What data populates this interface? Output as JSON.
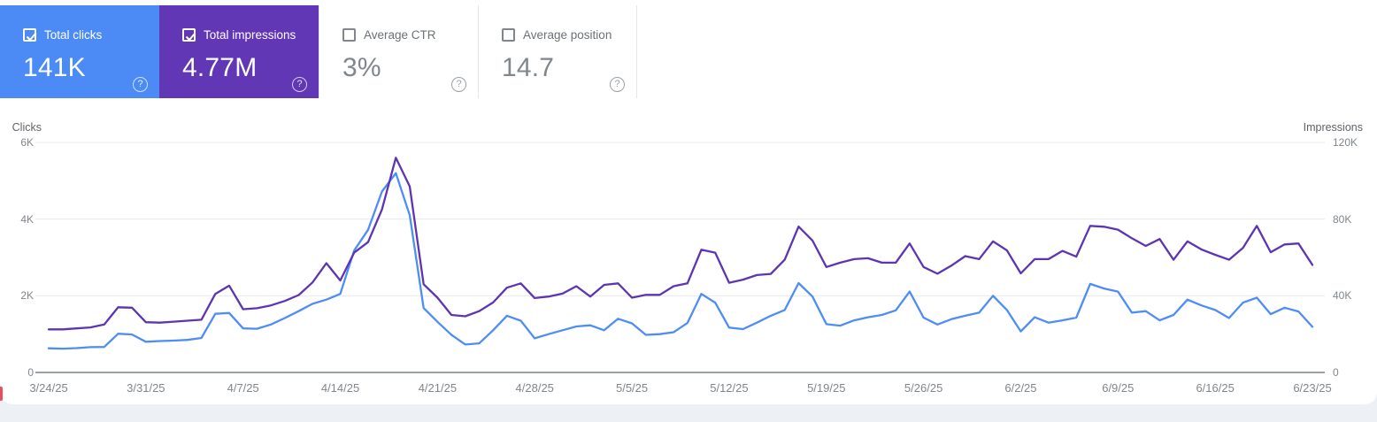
{
  "cards": [
    {
      "label": "Total clicks",
      "value": "141K",
      "checked": true,
      "bg": "#4c8bf5",
      "check_color": "#ffffff"
    },
    {
      "label": "Total impressions",
      "value": "4.77M",
      "checked": true,
      "bg": "#6137b5",
      "check_color": "#ffffff"
    },
    {
      "label": "Average CTR",
      "value": "3%",
      "checked": false,
      "bg": "#ffffff"
    },
    {
      "label": "Average position",
      "value": "14.7",
      "checked": false,
      "bg": "#ffffff"
    }
  ],
  "icons": {
    "help": "?",
    "checkbox_checked": "check-mark"
  },
  "chart_data": {
    "type": "line",
    "points": 92,
    "days_per_tick": 7,
    "x_tick_labels": [
      "3/24/25",
      "3/31/25",
      "4/7/25",
      "4/14/25",
      "4/21/25",
      "4/28/25",
      "5/5/25",
      "5/12/25",
      "5/19/25",
      "5/26/25",
      "6/2/25",
      "6/9/25",
      "6/16/25",
      "6/23/25"
    ],
    "y_left": {
      "title": "Clicks",
      "ticks": [
        "0",
        "2K",
        "4K",
        "6K"
      ],
      "max": 6000
    },
    "y_right": {
      "title": "Impressions",
      "ticks": [
        "0",
        "40K",
        "80K",
        "120K"
      ],
      "max": 120000
    },
    "grid": true,
    "legend_position": "none",
    "series": [
      {
        "name": "Clicks",
        "axis": "left",
        "color": "#4e8df5",
        "values": [
          630,
          620,
          635,
          660,
          665,
          1010,
          990,
          800,
          820,
          830,
          850,
          900,
          1530,
          1550,
          1150,
          1140,
          1250,
          1420,
          1600,
          1790,
          1900,
          2050,
          3180,
          3720,
          4720,
          5200,
          4100,
          1680,
          1320,
          980,
          730,
          760,
          1100,
          1480,
          1350,
          890,
          1000,
          1100,
          1200,
          1230,
          1100,
          1400,
          1280,
          980,
          1000,
          1050,
          1290,
          2050,
          1820,
          1170,
          1130,
          1300,
          1480,
          1630,
          2330,
          1980,
          1260,
          1220,
          1360,
          1440,
          1500,
          1620,
          2110,
          1430,
          1250,
          1390,
          1480,
          1560,
          2000,
          1630,
          1070,
          1440,
          1300,
          1360,
          1430,
          2310,
          2190,
          2110,
          1560,
          1600,
          1360,
          1500,
          1900,
          1750,
          1630,
          1420,
          1820,
          1950,
          1520,
          1690,
          1590,
          1190
        ]
      },
      {
        "name": "Impressions",
        "axis": "right",
        "color": "#5e35b1",
        "values": [
          22500,
          22500,
          23000,
          23500,
          25000,
          34000,
          33800,
          26200,
          26000,
          26500,
          27000,
          27500,
          41000,
          45300,
          33000,
          33500,
          35000,
          37300,
          40400,
          47000,
          57000,
          48000,
          62500,
          68000,
          85000,
          112000,
          97000,
          46000,
          39000,
          30000,
          29300,
          32000,
          36500,
          44200,
          46500,
          38800,
          39600,
          41100,
          45000,
          39600,
          45700,
          46500,
          39000,
          40500,
          40500,
          45000,
          46500,
          64000,
          62500,
          46800,
          48400,
          50800,
          51400,
          58800,
          76100,
          68800,
          55000,
          57300,
          59100,
          59600,
          57300,
          57300,
          67300,
          55000,
          51500,
          55700,
          60700,
          59100,
          68400,
          63700,
          51700,
          59100,
          59100,
          63400,
          60400,
          76500,
          76000,
          74500,
          70000,
          66000,
          69600,
          58800,
          68400,
          64200,
          61400,
          58800,
          65000,
          76500,
          62700,
          66800,
          67300,
          56100
        ]
      }
    ]
  }
}
